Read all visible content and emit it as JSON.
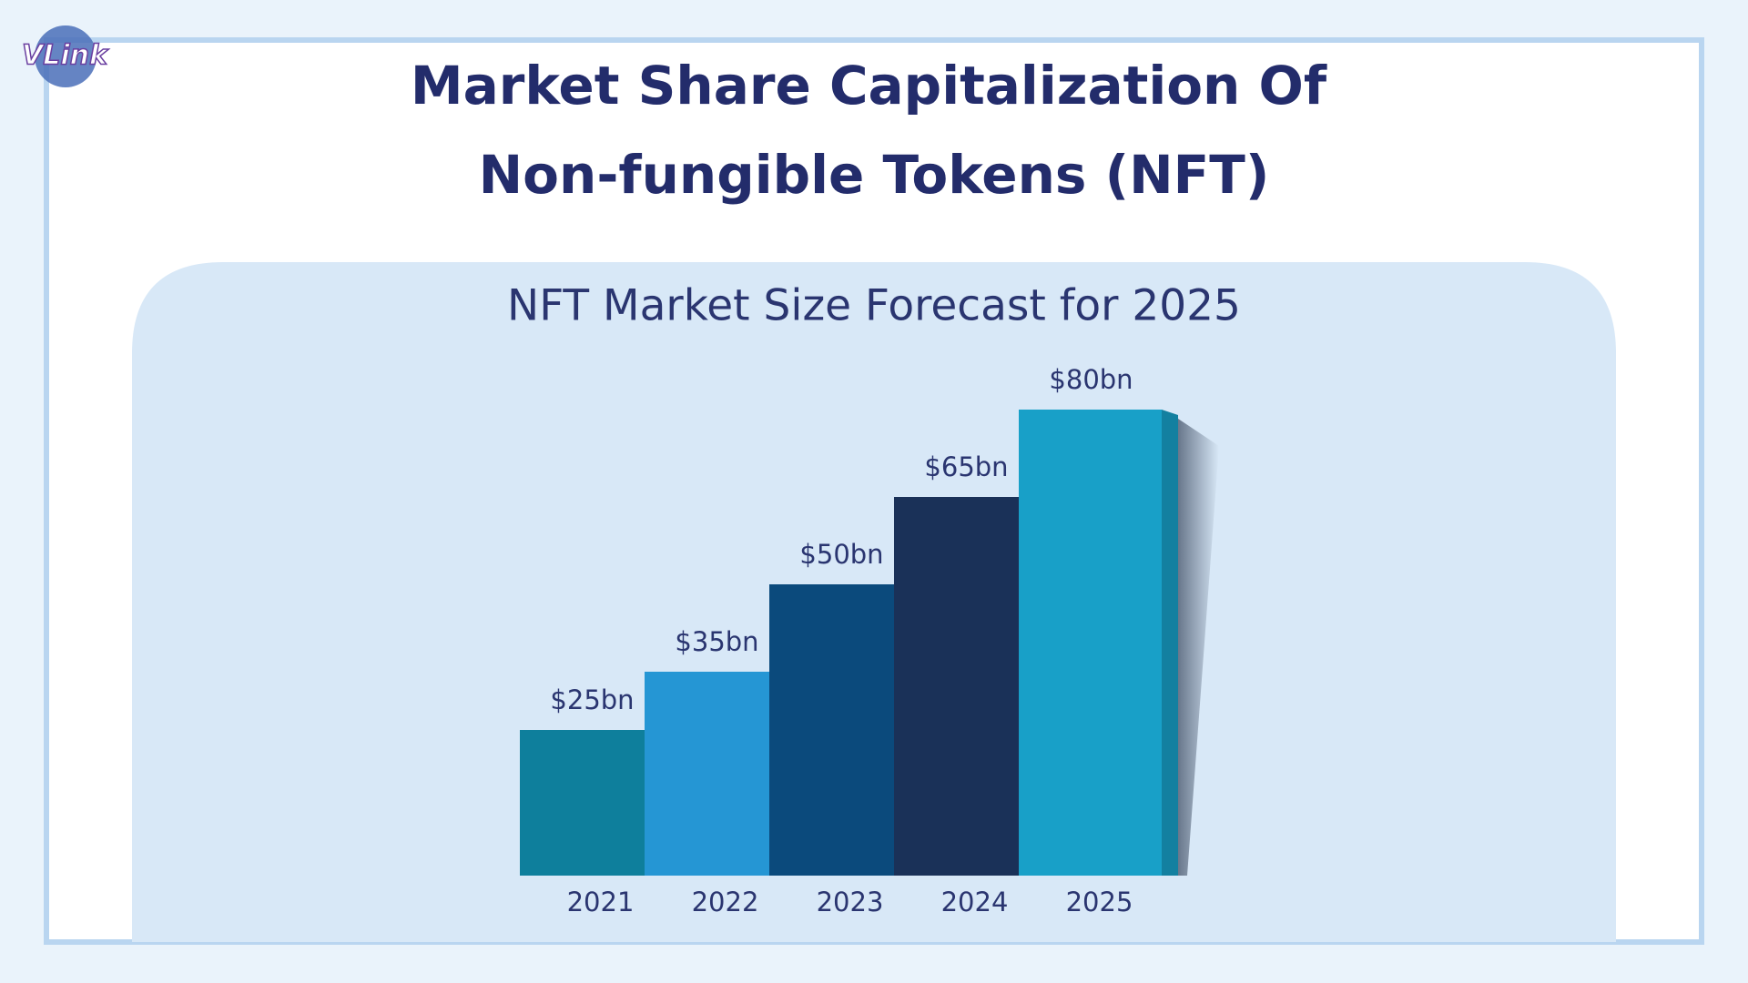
{
  "logo": "VLink",
  "chart_data": {
    "type": "bar",
    "title": "Market Share Capitalization Of Non-fungible Tokens (NFT)",
    "subtitle": "NFT Market Size Forecast for 2025",
    "categories": [
      "2021",
      "2022",
      "2023",
      "2024",
      "2025"
    ],
    "values": [
      25,
      35,
      50,
      65,
      80
    ],
    "value_labels": [
      "$25bn",
      "$35bn",
      "$50bn",
      "$65bn",
      "$80bn"
    ],
    "colors": [
      "#0e7f9c",
      "#2596d4",
      "#0b4a7c",
      "#1a3158",
      "#18a0c8"
    ]
  }
}
